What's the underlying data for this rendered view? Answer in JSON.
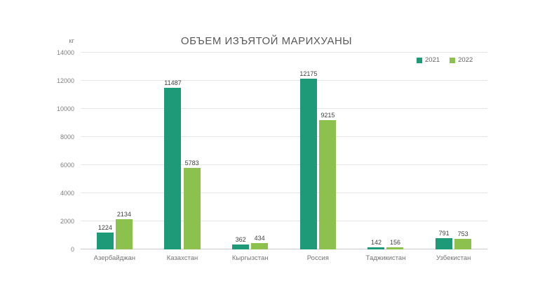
{
  "chart_data": {
    "type": "bar",
    "title": "ОБЪЕМ ИЗЪЯТОЙ МАРИХУАНЫ",
    "ylabel": "кг",
    "xlabel": "",
    "categories": [
      "Азербайджан",
      "Казахстан",
      "Кыргызстан",
      "Россия",
      "Таджикистан",
      "Узбекистан"
    ],
    "series": [
      {
        "name": "2021",
        "color": "#1e9a79",
        "values": [
          1224,
          11487,
          362,
          12175,
          142,
          791
        ]
      },
      {
        "name": "2022",
        "color": "#8cc14d",
        "values": [
          2134,
          5783,
          434,
          9215,
          156,
          753
        ]
      }
    ],
    "ylim": [
      0,
      14000
    ],
    "yticks": [
      0,
      2000,
      4000,
      6000,
      8000,
      10000,
      12000,
      14000
    ],
    "grid": true,
    "legend_position": "top-right",
    "data_labels": true
  }
}
